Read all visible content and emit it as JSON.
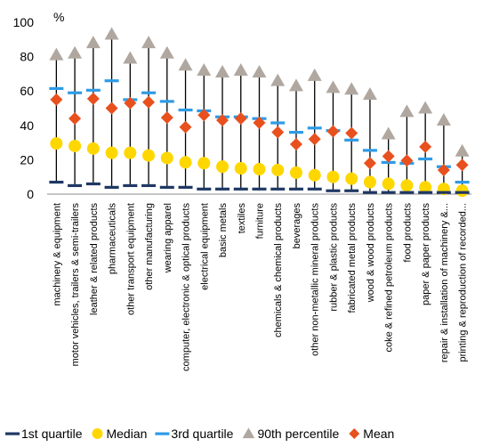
{
  "chart_data": {
    "type": "scatter",
    "ylabel": "%",
    "ylim": [
      0,
      100
    ],
    "yticks": [
      "0",
      "20",
      "40",
      "60",
      "80",
      "100"
    ],
    "categories": [
      "machinery & equipment",
      "motor vehicles, trailers & semi-trailers",
      "leather & related products",
      "pharmaceuticals",
      "other transport equipment",
      "other manufacturing",
      "wearing apparel",
      "computer, electronic & optical products",
      "electrical equipment",
      "basic metals",
      "textiles",
      "furniture",
      "chemicals & chemical products",
      "beverages",
      "other non-metallic mineral products",
      "rubber & plastic products",
      "fabricated metal products",
      "wood & wood products",
      "coke & refined petroleum products",
      "food products",
      "paper & paper products",
      "repair & installation of machinery &...",
      "printing & reproduction of recorded..."
    ],
    "series": [
      {
        "name": "1st quartile",
        "marker": "dash",
        "color": "#1f3864",
        "values": [
          7,
          5,
          6,
          4,
          5,
          5,
          4,
          4,
          3,
          3,
          3,
          3,
          3,
          3,
          3,
          2,
          2,
          1,
          1,
          1,
          1,
          1,
          1
        ]
      },
      {
        "name": "Median",
        "marker": "circle",
        "color": "#ffd700",
        "values": [
          29.5,
          28,
          26.5,
          24,
          24,
          22.5,
          21,
          18.5,
          18,
          16,
          15,
          14.5,
          14,
          12.5,
          11,
          10,
          9,
          7,
          6,
          5,
          4,
          3,
          2
        ]
      },
      {
        "name": "3rd quartile",
        "marker": "dash",
        "color": "#2e9be6",
        "values": [
          61.5,
          59,
          60.5,
          66,
          55,
          59,
          54,
          49,
          48.5,
          45,
          45,
          44,
          41.5,
          36,
          38.5,
          37,
          31.5,
          25.5,
          18.5,
          18,
          20.5,
          16,
          7
        ]
      },
      {
        "name": "90th percentile",
        "marker": "triangle",
        "color": "#b0a8a0",
        "values": [
          81,
          82,
          88,
          93,
          79,
          88,
          82,
          75,
          72,
          71,
          72,
          71,
          66,
          63,
          69,
          62,
          61,
          58,
          35,
          48,
          50,
          43,
          25
        ]
      },
      {
        "name": "Mean",
        "marker": "diamond",
        "color": "#e8501e",
        "values": [
          55,
          44,
          55.5,
          50,
          53,
          53.5,
          44.5,
          39,
          46,
          43,
          44,
          41.5,
          36,
          29,
          32,
          36.5,
          35.5,
          18,
          22,
          19.5,
          27.5,
          14,
          17
        ]
      }
    ],
    "legend_position": "bottom"
  }
}
